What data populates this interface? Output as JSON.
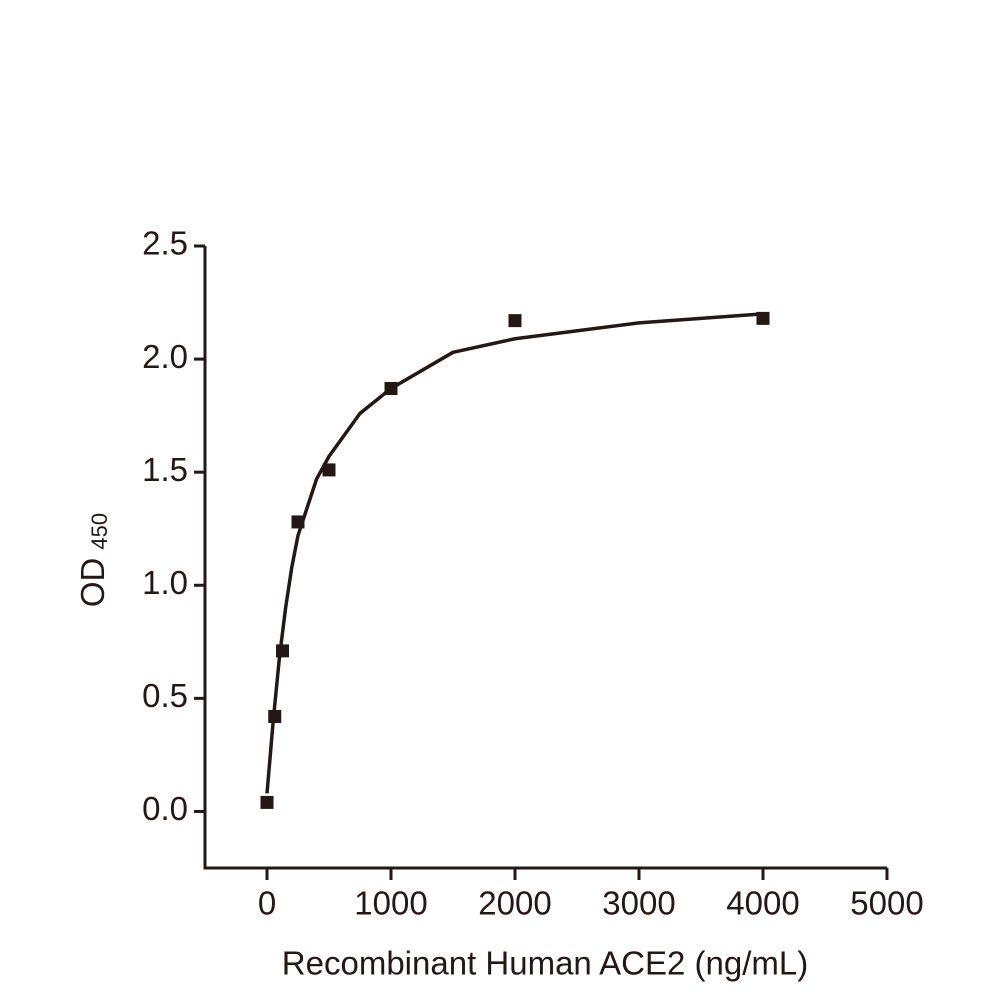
{
  "chart_data": {
    "type": "scatter",
    "x_label": "Recombinant Human ACE2 (ng/mL)",
    "y_label": "OD",
    "y_label_subscript": "450",
    "x": [
      0,
      62.5,
      125,
      250,
      500,
      1000,
      2000,
      4000
    ],
    "values": [
      0.04,
      0.42,
      0.71,
      1.28,
      1.51,
      1.87,
      2.17,
      2.18
    ],
    "color": "#231815",
    "fit": {
      "x": [
        0,
        25,
        50,
        100,
        150,
        200,
        250,
        400,
        500,
        750,
        1000,
        1500,
        2000,
        3000,
        4000
      ],
      "values": [
        0.08,
        0.24,
        0.4,
        0.68,
        0.9,
        1.08,
        1.22,
        1.47,
        1.57,
        1.76,
        1.87,
        2.03,
        2.09,
        2.16,
        2.2
      ]
    },
    "xlim": [
      -500,
      5000
    ],
    "xticks": [
      0,
      1000,
      2000,
      3000,
      4000,
      5000
    ],
    "ylim": [
      -0.25,
      2.5
    ],
    "yticks": [
      {
        "value": 0,
        "label": "0.0"
      },
      0.5,
      {
        "value": 1,
        "label": "1.0"
      },
      1.5,
      {
        "value": 2,
        "label": "2.0"
      },
      2.5
    ]
  }
}
